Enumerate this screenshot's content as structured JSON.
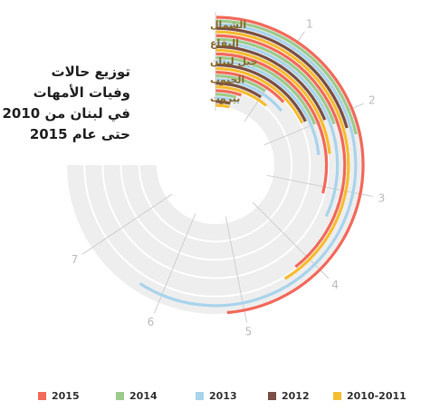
{
  "title_lines": [
    "توزيع حالات",
    "وفيات الأمهات",
    "في لبنان من 2010",
    "حتى عام 2015"
  ],
  "chart_data": {
    "type": "radial-bar",
    "title": "توزيع حالات وفيات الأمهات في لبنان من 2010 حتى عام 2015",
    "regions": [
      "الشمال",
      "البقاع",
      "جبل لبنان",
      "الجنوب",
      "بيروت"
    ],
    "axis_ticks": [
      "1",
      "2",
      "3",
      "4",
      "5",
      "6",
      "7"
    ],
    "axis_max": 8,
    "series": [
      {
        "name": "2015",
        "color": "#f26a5b",
        "values": [
          5.2,
          4.2,
          3.1,
          1.4,
          0.6
        ]
      },
      {
        "name": "2014",
        "color": "#9dcb8b",
        "values": [
          2.3,
          2.1,
          2.0,
          1.0,
          0.5
        ]
      },
      {
        "name": "2013",
        "color": "#a9d4ec",
        "values": [
          6.3,
          3.4,
          2.5,
          1.5,
          0.6
        ]
      },
      {
        "name": "2012",
        "color": "#7a4f45",
        "values": [
          2.2,
          2.0,
          1.9,
          1.0,
          0.4
        ]
      },
      {
        "name": "2010-2011",
        "color": "#f6bd31",
        "values": [
          4.4,
          2.5,
          1.9,
          1.2,
          0.4
        ]
      }
    ],
    "track_color": "#eeeeee",
    "legend_position": "bottom"
  }
}
